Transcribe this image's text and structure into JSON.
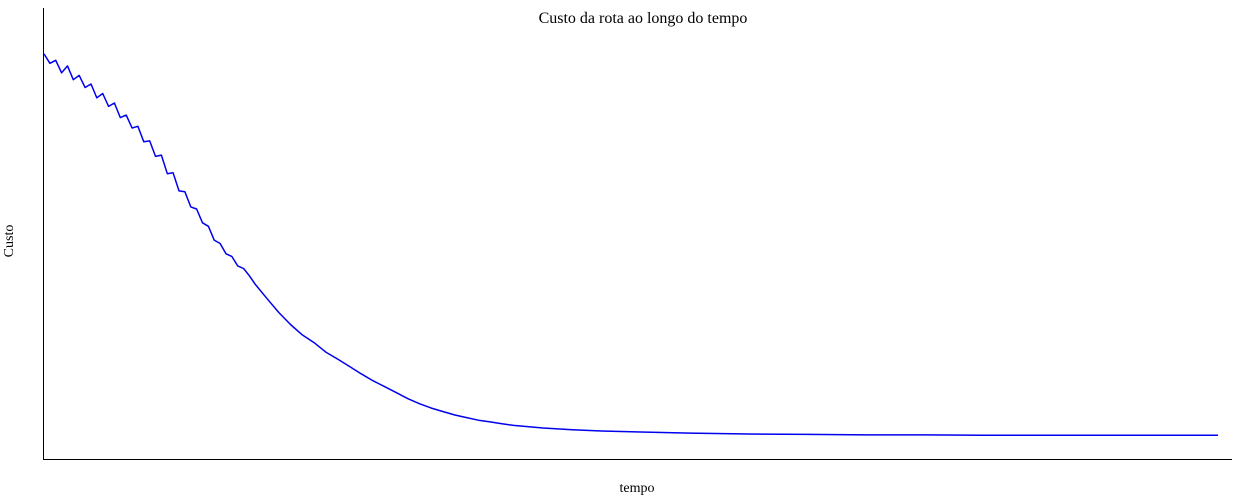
{
  "chart_data": {
    "type": "line",
    "title": "Custo da rota ao longo do tempo",
    "xlabel": "tempo",
    "ylabel": "Custo",
    "grid": false,
    "legend": "none",
    "x_ticks_shown": false,
    "y_ticks_shown": false,
    "xlim": [
      0,
      1000
    ],
    "ylim": [
      0,
      1000
    ],
    "series": [
      {
        "color": "#0000ee",
        "x": [
          0,
          5,
          10,
          15,
          20,
          25,
          30,
          35,
          40,
          45,
          50,
          55,
          60,
          65,
          70,
          75,
          80,
          85,
          90,
          95,
          100,
          105,
          110,
          115,
          120,
          125,
          130,
          135,
          140,
          145,
          150,
          155,
          160,
          165,
          170,
          175,
          180,
          190,
          200,
          210,
          220,
          230,
          240,
          250,
          260,
          270,
          280,
          290,
          300,
          310,
          320,
          330,
          340,
          350,
          360,
          370,
          380,
          390,
          400,
          425,
          450,
          475,
          500,
          550,
          600,
          650,
          700,
          750,
          800,
          850,
          900,
          950,
          1000
        ],
        "values": [
          940,
          918,
          925,
          896,
          912,
          880,
          890,
          862,
          870,
          838,
          848,
          818,
          826,
          792,
          798,
          768,
          772,
          736,
          738,
          702,
          705,
          662,
          664,
          622,
          620,
          585,
          580,
          548,
          540,
          508,
          500,
          476,
          470,
          448,
          442,
          425,
          405,
          372,
          340,
          312,
          288,
          270,
          248,
          232,
          215,
          198,
          182,
          168,
          154,
          140,
          128,
          118,
          110,
          102,
          96,
          90,
          86,
          82,
          78,
          72,
          68,
          65,
          63,
          60,
          58,
          57,
          56,
          56,
          55,
          55,
          55,
          55,
          55
        ]
      }
    ]
  }
}
